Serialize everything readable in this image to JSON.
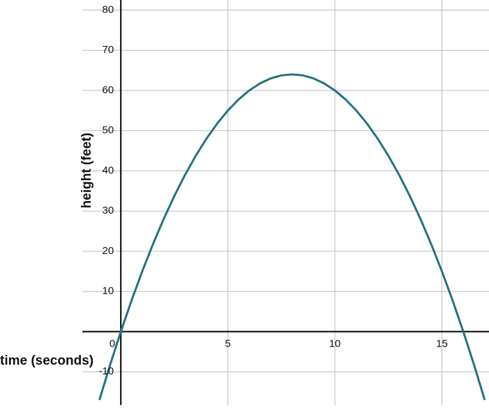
{
  "chart_data": {
    "type": "line",
    "x_label": "time (seconds)",
    "y_label": "height (feet)",
    "x": [
      -1,
      -0.5,
      0,
      0.5,
      1,
      1.5,
      2,
      2.5,
      3,
      3.5,
      4,
      4.5,
      5,
      5.5,
      6,
      6.5,
      7,
      7.5,
      8,
      8.5,
      9,
      9.5,
      10,
      10.5,
      11,
      11.5,
      12,
      12.5,
      13,
      13.5,
      14,
      14.5,
      15,
      15.5,
      16,
      16.5,
      17
    ],
    "series": [
      {
        "color": "#23737f",
        "values": [
          -17,
          -8.25,
          0,
          7.75,
          15,
          21.75,
          28,
          33.75,
          39,
          43.75,
          48,
          51.75,
          55,
          57.75,
          60,
          61.75,
          63,
          63.75,
          64,
          63.75,
          63,
          61.75,
          60,
          57.75,
          55,
          51.75,
          48,
          43.75,
          39,
          33.75,
          28,
          21.75,
          15,
          7.75,
          0,
          -8.25,
          -17
        ]
      }
    ],
    "xlim": [
      -1.8,
      17.2
    ],
    "ylim": [
      -20,
      82.5
    ],
    "xticks": [
      0,
      5,
      10,
      15
    ],
    "yticks": [
      -10,
      10,
      20,
      30,
      40,
      50,
      60,
      70,
      80
    ],
    "grid": true
  }
}
